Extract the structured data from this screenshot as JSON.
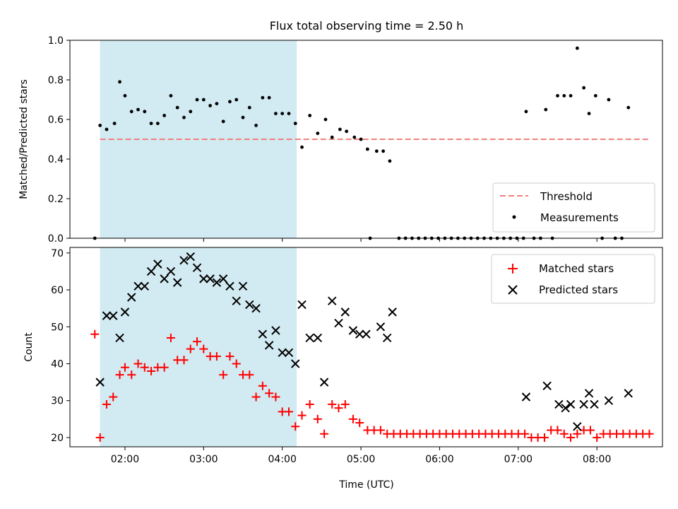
{
  "figure": {
    "title": "Flux total observing time = 2.50 h"
  },
  "chart_data": [
    {
      "type": "scatter",
      "xlabel": "",
      "ylabel": "Matched/Predicted stars",
      "xlim": [
        "01:18",
        "08:50"
      ],
      "ylim": [
        0,
        1.0
      ],
      "yticks": [
        0.0,
        0.2,
        0.4,
        0.6,
        0.8,
        1.0
      ],
      "xticks": [
        "02:00",
        "03:00",
        "04:00",
        "05:00",
        "06:00",
        "07:00",
        "08:00"
      ],
      "x_tick_labels_visible": false,
      "shaded_span": [
        "01:41",
        "04:11"
      ],
      "shaded_color": "#add8e6",
      "legend_placement": "lower right",
      "threshold": {
        "name": "Threshold",
        "value": 0.5,
        "x": [
          "01:41",
          "08:40"
        ],
        "color": "#f08080"
      },
      "measurements": {
        "name": "Measurements",
        "color": "#000000",
        "points": [
          [
            "01:37",
            0.0
          ],
          [
            "01:41",
            0.57
          ],
          [
            "01:46",
            0.55
          ],
          [
            "01:52",
            0.58
          ],
          [
            "01:56",
            0.79
          ],
          [
            "02:00",
            0.72
          ],
          [
            "02:05",
            0.64
          ],
          [
            "02:10",
            0.65
          ],
          [
            "02:15",
            0.64
          ],
          [
            "02:20",
            0.58
          ],
          [
            "02:25",
            0.58
          ],
          [
            "02:30",
            0.62
          ],
          [
            "02:35",
            0.72
          ],
          [
            "02:40",
            0.66
          ],
          [
            "02:45",
            0.61
          ],
          [
            "02:50",
            0.64
          ],
          [
            "02:55",
            0.7
          ],
          [
            "03:00",
            0.7
          ],
          [
            "03:05",
            0.67
          ],
          [
            "03:10",
            0.68
          ],
          [
            "03:15",
            0.59
          ],
          [
            "03:20",
            0.69
          ],
          [
            "03:25",
            0.7
          ],
          [
            "03:30",
            0.61
          ],
          [
            "03:35",
            0.66
          ],
          [
            "03:40",
            0.57
          ],
          [
            "03:45",
            0.71
          ],
          [
            "03:50",
            0.71
          ],
          [
            "03:55",
            0.63
          ],
          [
            "04:00",
            0.63
          ],
          [
            "04:05",
            0.63
          ],
          [
            "04:10",
            0.58
          ],
          [
            "04:15",
            0.46
          ],
          [
            "04:21",
            0.62
          ],
          [
            "04:27",
            0.53
          ],
          [
            "04:33",
            0.6
          ],
          [
            "04:38",
            0.51
          ],
          [
            "04:44",
            0.55
          ],
          [
            "04:49",
            0.54
          ],
          [
            "04:55",
            0.51
          ],
          [
            "05:00",
            0.5
          ],
          [
            "05:05",
            0.45
          ],
          [
            "05:07",
            0.0
          ],
          [
            "05:12",
            0.44
          ],
          [
            "05:17",
            0.44
          ],
          [
            "05:22",
            0.39
          ],
          [
            "05:29",
            0.0
          ],
          [
            "05:34",
            0.0
          ],
          [
            "05:39",
            0.0
          ],
          [
            "05:44",
            0.0
          ],
          [
            "05:49",
            0.0
          ],
          [
            "05:54",
            0.0
          ],
          [
            "05:59",
            0.0
          ],
          [
            "06:04",
            0.0
          ],
          [
            "06:09",
            0.0
          ],
          [
            "06:14",
            0.0
          ],
          [
            "06:19",
            0.0
          ],
          [
            "06:24",
            0.0
          ],
          [
            "06:29",
            0.0
          ],
          [
            "06:34",
            0.0
          ],
          [
            "06:39",
            0.0
          ],
          [
            "06:44",
            0.0
          ],
          [
            "06:49",
            0.0
          ],
          [
            "06:54",
            0.0
          ],
          [
            "06:59",
            0.0
          ],
          [
            "07:04",
            0.0
          ],
          [
            "07:06",
            0.64
          ],
          [
            "07:12",
            0.0
          ],
          [
            "07:17",
            0.0
          ],
          [
            "07:21",
            0.65
          ],
          [
            "07:26",
            0.0
          ],
          [
            "07:30",
            0.72
          ],
          [
            "07:35",
            0.72
          ],
          [
            "07:40",
            0.72
          ],
          [
            "07:45",
            0.96
          ],
          [
            "07:50",
            0.76
          ],
          [
            "07:54",
            0.63
          ],
          [
            "07:59",
            0.72
          ],
          [
            "08:04",
            0.0
          ],
          [
            "08:09",
            0.7
          ],
          [
            "08:14",
            0.0
          ],
          [
            "08:19",
            0.0
          ],
          [
            "08:24",
            0.66
          ]
        ]
      }
    },
    {
      "type": "scatter",
      "xlabel": "Time (UTC)",
      "ylabel": "Count",
      "xlim": [
        "01:18",
        "08:50"
      ],
      "ylim": [
        17.5,
        71.5
      ],
      "yticks": [
        20,
        30,
        40,
        50,
        60,
        70
      ],
      "xticks": [
        "02:00",
        "03:00",
        "04:00",
        "05:00",
        "06:00",
        "07:00",
        "08:00"
      ],
      "shaded_span": [
        "01:41",
        "04:11"
      ],
      "shaded_color": "#add8e6",
      "legend_placement": "upper right",
      "series": [
        {
          "name": "Matched stars",
          "marker": "plus",
          "color": "#ff0000",
          "points": [
            [
              "01:37",
              48
            ],
            [
              "01:41",
              20
            ],
            [
              "01:46",
              29
            ],
            [
              "01:51",
              31
            ],
            [
              "01:56",
              37
            ],
            [
              "02:00",
              39
            ],
            [
              "02:05",
              37
            ],
            [
              "02:10",
              40
            ],
            [
              "02:15",
              39
            ],
            [
              "02:20",
              38
            ],
            [
              "02:25",
              39
            ],
            [
              "02:30",
              39
            ],
            [
              "02:35",
              47
            ],
            [
              "02:40",
              41
            ],
            [
              "02:45",
              41
            ],
            [
              "02:50",
              44
            ],
            [
              "02:55",
              46
            ],
            [
              "03:00",
              44
            ],
            [
              "03:05",
              42
            ],
            [
              "03:10",
              42
            ],
            [
              "03:15",
              37
            ],
            [
              "03:20",
              42
            ],
            [
              "03:25",
              40
            ],
            [
              "03:30",
              37
            ],
            [
              "03:35",
              37
            ],
            [
              "03:40",
              31
            ],
            [
              "03:45",
              34
            ],
            [
              "03:50",
              32
            ],
            [
              "03:55",
              31
            ],
            [
              "04:00",
              27
            ],
            [
              "04:05",
              27
            ],
            [
              "04:10",
              23
            ],
            [
              "04:15",
              26
            ],
            [
              "04:21",
              29
            ],
            [
              "04:27",
              25
            ],
            [
              "04:32",
              21
            ],
            [
              "04:38",
              29
            ],
            [
              "04:43",
              28
            ],
            [
              "04:48",
              29
            ],
            [
              "04:54",
              25
            ],
            [
              "04:59",
              24
            ],
            [
              "05:05",
              22
            ],
            [
              "05:10",
              22
            ],
            [
              "05:15",
              22
            ],
            [
              "05:20",
              21
            ],
            [
              "05:25",
              21
            ],
            [
              "05:30",
              21
            ],
            [
              "05:35",
              21
            ],
            [
              "05:40",
              21
            ],
            [
              "05:45",
              21
            ],
            [
              "05:50",
              21
            ],
            [
              "05:55",
              21
            ],
            [
              "06:00",
              21
            ],
            [
              "06:05",
              21
            ],
            [
              "06:10",
              21
            ],
            [
              "06:15",
              21
            ],
            [
              "06:20",
              21
            ],
            [
              "06:25",
              21
            ],
            [
              "06:30",
              21
            ],
            [
              "06:35",
              21
            ],
            [
              "06:40",
              21
            ],
            [
              "06:45",
              21
            ],
            [
              "06:50",
              21
            ],
            [
              "06:55",
              21
            ],
            [
              "07:00",
              21
            ],
            [
              "07:05",
              21
            ],
            [
              "07:10",
              20
            ],
            [
              "07:15",
              20
            ],
            [
              "07:20",
              20
            ],
            [
              "07:25",
              22
            ],
            [
              "07:30",
              22
            ],
            [
              "07:35",
              21
            ],
            [
              "07:40",
              20
            ],
            [
              "07:45",
              21
            ],
            [
              "07:50",
              22
            ],
            [
              "07:55",
              22
            ],
            [
              "08:00",
              20
            ],
            [
              "08:05",
              21
            ],
            [
              "08:10",
              21
            ],
            [
              "08:15",
              21
            ],
            [
              "08:20",
              21
            ],
            [
              "08:25",
              21
            ],
            [
              "08:30",
              21
            ],
            [
              "08:35",
              21
            ],
            [
              "08:40",
              21
            ]
          ]
        },
        {
          "name": "Predicted stars",
          "marker": "x",
          "color": "#000000",
          "points": [
            [
              "01:41",
              35
            ],
            [
              "01:46",
              53
            ],
            [
              "01:51",
              53
            ],
            [
              "01:56",
              47
            ],
            [
              "02:00",
              54
            ],
            [
              "02:05",
              58
            ],
            [
              "02:10",
              61
            ],
            [
              "02:15",
              61
            ],
            [
              "02:20",
              65
            ],
            [
              "02:25",
              67
            ],
            [
              "02:30",
              63
            ],
            [
              "02:35",
              65
            ],
            [
              "02:40",
              62
            ],
            [
              "02:45",
              68
            ],
            [
              "02:50",
              69
            ],
            [
              "02:55",
              66
            ],
            [
              "03:00",
              63
            ],
            [
              "03:05",
              63
            ],
            [
              "03:10",
              62
            ],
            [
              "03:15",
              63
            ],
            [
              "03:20",
              61
            ],
            [
              "03:25",
              57
            ],
            [
              "03:30",
              61
            ],
            [
              "03:35",
              56
            ],
            [
              "03:40",
              55
            ],
            [
              "03:45",
              48
            ],
            [
              "03:50",
              45
            ],
            [
              "03:55",
              49
            ],
            [
              "04:00",
              43
            ],
            [
              "04:05",
              43
            ],
            [
              "04:10",
              40
            ],
            [
              "04:15",
              56
            ],
            [
              "04:21",
              47
            ],
            [
              "04:27",
              47
            ],
            [
              "04:32",
              35
            ],
            [
              "04:38",
              57
            ],
            [
              "04:43",
              51
            ],
            [
              "04:48",
              54
            ],
            [
              "04:54",
              49
            ],
            [
              "04:59",
              48
            ],
            [
              "05:04",
              48
            ],
            [
              "05:15",
              50
            ],
            [
              "05:20",
              47
            ],
            [
              "05:24",
              54
            ],
            [
              "07:06",
              31
            ],
            [
              "07:22",
              34
            ],
            [
              "07:31",
              29
            ],
            [
              "07:36",
              28
            ],
            [
              "07:40",
              29
            ],
            [
              "07:45",
              23
            ],
            [
              "07:50",
              29
            ],
            [
              "07:54",
              32
            ],
            [
              "07:58",
              29
            ],
            [
              "08:09",
              30
            ],
            [
              "08:24",
              32
            ]
          ]
        }
      ]
    }
  ]
}
